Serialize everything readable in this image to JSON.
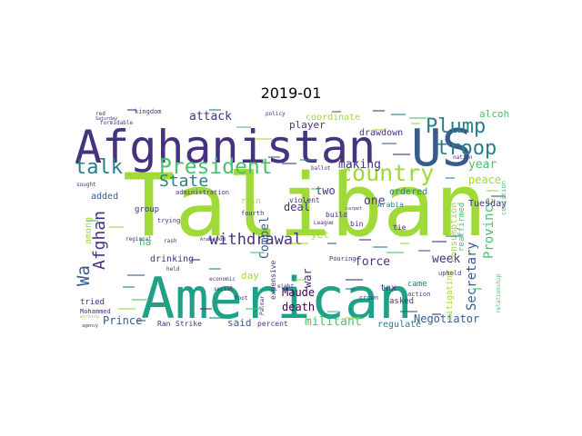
{
  "title": "2019-01",
  "colors": {
    "background": "#ffffff",
    "deep_purple": "#440154",
    "indigo": "#46327e",
    "slate_blue": "#365c8d",
    "teal_blue": "#277f8e",
    "sea_green": "#1fa187",
    "green": "#4ac16d",
    "lime": "#a0da39",
    "yellow": "#fde725"
  },
  "words": [
    {
      "text": "Taliban",
      "color": "#a0da39"
    },
    {
      "text": "American",
      "color": "#1fa187"
    },
    {
      "text": "Afghanistan",
      "color": "#46327e"
    },
    {
      "text": "US",
      "color": "#365c8d"
    },
    {
      "text": "President",
      "color": "#4ac16d"
    },
    {
      "text": "country",
      "color": "#a0da39"
    },
    {
      "text": "Plump",
      "color": "#277f8e"
    },
    {
      "text": "troop",
      "color": "#277f8e"
    },
    {
      "text": "talk",
      "color": "#277f8e"
    },
    {
      "text": "State",
      "color": "#277f8e"
    },
    {
      "text": "withdrawal",
      "color": "#46327e"
    },
    {
      "text": "Afghan",
      "color": "#46327e"
    },
    {
      "text": "Wa",
      "color": "#365c8d"
    },
    {
      "text": "attack",
      "color": "#46327e"
    },
    {
      "text": "making",
      "color": "#46327e"
    },
    {
      "text": "year",
      "color": "#4ac16d"
    },
    {
      "text": "peace",
      "color": "#a0da39"
    },
    {
      "text": "Province",
      "color": "#4ac16d"
    },
    {
      "text": "Secretary",
      "color": "#365c8d"
    },
    {
      "text": "Compel",
      "color": "#365c8d"
    },
    {
      "text": "two",
      "color": "#46327e"
    },
    {
      "text": "deal",
      "color": "#46327e"
    },
    {
      "text": "one",
      "color": "#46327e"
    },
    {
      "text": "force",
      "color": "#46327e"
    },
    {
      "text": "week",
      "color": "#46327e"
    },
    {
      "text": "militant",
      "color": "#4ac16d"
    },
    {
      "text": "Maude",
      "color": "#440154"
    },
    {
      "text": "death",
      "color": "#440154"
    },
    {
      "text": "said",
      "color": "#365c8d"
    },
    {
      "text": "Prince",
      "color": "#365c8d"
    },
    {
      "text": "Negotiator",
      "color": "#365c8d"
    },
    {
      "text": "regulate",
      "color": "#277f8e"
    },
    {
      "text": "Tuesday",
      "color": "#46327e"
    },
    {
      "text": "ordered",
      "color": "#277f8e"
    },
    {
      "text": "coordinate",
      "color": "#a0da39"
    },
    {
      "text": "drawdown",
      "color": "#46327e"
    },
    {
      "text": "player",
      "color": "#46327e"
    },
    {
      "text": "alcohol",
      "color": "#4ac16d"
    },
    {
      "text": "consumption",
      "color": "#a0da39"
    },
    {
      "text": "added",
      "color": "#365c8d"
    },
    {
      "text": "among",
      "color": "#a0da39"
    },
    {
      "text": "ha",
      "color": "#4ac16d"
    },
    {
      "text": "day",
      "color": "#a0da39"
    },
    {
      "text": "rain",
      "color": "#a0da39"
    },
    {
      "text": "group",
      "color": "#46327e"
    },
    {
      "text": "drinking",
      "color": "#46327e"
    },
    {
      "text": "war",
      "color": "#46327e"
    },
    {
      "text": "yet",
      "color": "#a0da39"
    },
    {
      "text": "tax",
      "color": "#46327e"
    },
    {
      "text": "came",
      "color": "#277f8e"
    },
    {
      "text": "asked",
      "color": "#46327e"
    },
    {
      "text": "tried",
      "color": "#46327e"
    },
    {
      "text": "reaffirmed",
      "color": "#4ac16d"
    },
    {
      "text": "mitigating",
      "color": "#a0da39"
    },
    {
      "text": "expensive",
      "color": "#46327e"
    },
    {
      "text": "violent",
      "color": "#46327e"
    },
    {
      "text": "build",
      "color": "#46327e"
    },
    {
      "text": "bin",
      "color": "#46327e"
    },
    {
      "text": "tie",
      "color": "#46327e"
    },
    {
      "text": "Arabia",
      "color": "#277f8e"
    },
    {
      "text": "uphold",
      "color": "#46327e"
    },
    {
      "text": "Mohammed",
      "color": "#46327e"
    },
    {
      "text": "Ran",
      "color": "#46327e"
    },
    {
      "text": "Strike",
      "color": "#46327e"
    },
    {
      "text": "percent",
      "color": "#46327e"
    },
    {
      "text": "crown",
      "color": "#46327e"
    },
    {
      "text": "action",
      "color": "#46327e"
    },
    {
      "text": "kingdom",
      "color": "#46327e"
    },
    {
      "text": "administration",
      "color": "#46327e"
    },
    {
      "text": "trying",
      "color": "#46327e"
    },
    {
      "text": "fourth",
      "color": "#46327e"
    },
    {
      "text": "Pouring",
      "color": "#46327e"
    },
    {
      "text": "League",
      "color": "#46327e"
    },
    {
      "text": "eight",
      "color": "#46327e"
    },
    {
      "text": "nation",
      "color": "#46327e"
    },
    {
      "text": "coalition",
      "color": "#4ac16d"
    },
    {
      "text": "relationship",
      "color": "#4ac16d"
    },
    {
      "text": "regional",
      "color": "#46327e"
    },
    {
      "text": "rash",
      "color": "#46327e"
    },
    {
      "text": "Groom",
      "color": "#46327e"
    },
    {
      "text": "held",
      "color": "#46327e"
    },
    {
      "text": "economic",
      "color": "#46327e"
    },
    {
      "text": "social",
      "color": "#46327e"
    },
    {
      "text": "foot",
      "color": "#46327e"
    },
    {
      "text": "Palmar",
      "color": "#46327e"
    },
    {
      "text": "sought",
      "color": "#46327e"
    },
    {
      "text": "formidable",
      "color": "#46327e"
    },
    {
      "text": "red",
      "color": "#46327e"
    },
    {
      "text": "ballot",
      "color": "#46327e"
    },
    {
      "text": "carpet",
      "color": "#46327e"
    },
    {
      "text": "policy",
      "color": "#46327e"
    },
    {
      "text": "Arab",
      "color": "#46327e"
    },
    {
      "text": "Saturday",
      "color": "#46327e"
    },
    {
      "text": "working",
      "color": "#a0da39"
    },
    {
      "text": "agency",
      "color": "#46327e"
    }
  ]
}
